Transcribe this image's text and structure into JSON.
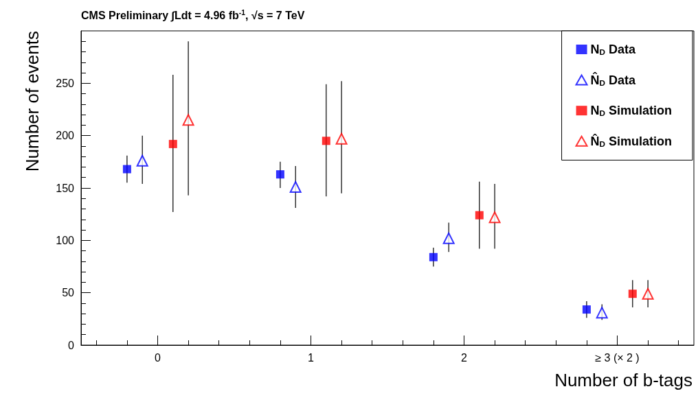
{
  "chart_data": {
    "type": "scatter",
    "title": "CMS Preliminary ∫Ldt = 4.96 fb$^{-1}$, √s = 7 TeV",
    "xlabel": "Number of b-tags",
    "ylabel": "Number of events",
    "xlim": [
      -0.5,
      3.5
    ],
    "xticks": [
      0,
      1,
      2,
      {
        "value": 3,
        "label": "≥ 3 (× 2 )"
      }
    ],
    "ylim": [
      0,
      300
    ],
    "yticks": [
      0,
      50,
      100,
      150,
      200,
      250
    ],
    "grid": false,
    "legend": "top right",
    "series": [
      {
        "name": "N$_{D}$ Data",
        "color": "#0000ff",
        "marker": "square",
        "x": [
          -0.2,
          0.8,
          1.8,
          2.8
        ],
        "values": [
          168,
          163,
          84,
          34
        ],
        "errors": [
          [
            155,
            181
          ],
          [
            150,
            175
          ],
          [
            75,
            93
          ],
          [
            26,
            42
          ]
        ]
      },
      {
        "name": "N̂$_{D}$ Data",
        "color": "#0000ff",
        "marker": "triangle",
        "x": [
          -0.1,
          0.9,
          1.9,
          2.9
        ],
        "values": [
          176,
          151,
          102,
          31
        ],
        "errors": [
          [
            154,
            200
          ],
          [
            131,
            171
          ],
          [
            89,
            117
          ],
          [
            24,
            39
          ]
        ]
      },
      {
        "name": "N$_{D}$ Simulation",
        "color": "#ff0000",
        "marker": "square",
        "x": [
          0.1,
          1.1,
          2.1,
          3.1
        ],
        "values": [
          192,
          195,
          124,
          49
        ],
        "errors": [
          [
            127,
            258
          ],
          [
            142,
            249
          ],
          [
            92,
            156
          ],
          [
            36,
            62
          ]
        ]
      },
      {
        "name": "N̂$_{D}$ Simulation",
        "color": "#ff0000",
        "marker": "triangle",
        "x": [
          0.2,
          1.2,
          2.2,
          3.2
        ],
        "values": [
          215,
          197,
          122,
          49
        ],
        "errors": [
          [
            143,
            290
          ],
          [
            145,
            252
          ],
          [
            92,
            154
          ],
          [
            36,
            62
          ]
        ]
      }
    ]
  }
}
